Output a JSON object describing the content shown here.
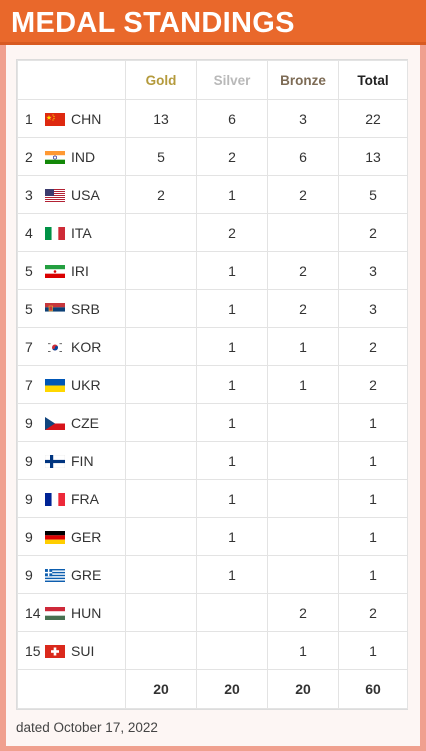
{
  "header": {
    "title": "MEDAL STANDINGS"
  },
  "columns": {
    "gold": "Gold",
    "silver": "Silver",
    "bronze": "Bronze",
    "total": "Total"
  },
  "rows": [
    {
      "rank": "1",
      "code": "CHN",
      "flag": "flag-china-icon",
      "gold": "13",
      "silver": "6",
      "bronze": "3",
      "total": "22"
    },
    {
      "rank": "2",
      "code": "IND",
      "flag": "flag-india-icon",
      "gold": "5",
      "silver": "2",
      "bronze": "6",
      "total": "13"
    },
    {
      "rank": "3",
      "code": "USA",
      "flag": "flag-usa-icon",
      "gold": "2",
      "silver": "1",
      "bronze": "2",
      "total": "5"
    },
    {
      "rank": "4",
      "code": "ITA",
      "flag": "flag-italy-icon",
      "gold": "",
      "silver": "2",
      "bronze": "",
      "total": "2"
    },
    {
      "rank": "5",
      "code": "IRI",
      "flag": "flag-iran-icon",
      "gold": "",
      "silver": "1",
      "bronze": "2",
      "total": "3"
    },
    {
      "rank": "5",
      "code": "SRB",
      "flag": "flag-serbia-icon",
      "gold": "",
      "silver": "1",
      "bronze": "2",
      "total": "3"
    },
    {
      "rank": "7",
      "code": "KOR",
      "flag": "flag-korea-icon",
      "gold": "",
      "silver": "1",
      "bronze": "1",
      "total": "2"
    },
    {
      "rank": "7",
      "code": "UKR",
      "flag": "flag-ukraine-icon",
      "gold": "",
      "silver": "1",
      "bronze": "1",
      "total": "2"
    },
    {
      "rank": "9",
      "code": "CZE",
      "flag": "flag-czechia-icon",
      "gold": "",
      "silver": "1",
      "bronze": "",
      "total": "1"
    },
    {
      "rank": "9",
      "code": "FIN",
      "flag": "flag-finland-icon",
      "gold": "",
      "silver": "1",
      "bronze": "",
      "total": "1"
    },
    {
      "rank": "9",
      "code": "FRA",
      "flag": "flag-france-icon",
      "gold": "",
      "silver": "1",
      "bronze": "",
      "total": "1"
    },
    {
      "rank": "9",
      "code": "GER",
      "flag": "flag-germany-icon",
      "gold": "",
      "silver": "1",
      "bronze": "",
      "total": "1"
    },
    {
      "rank": "9",
      "code": "GRE",
      "flag": "flag-greece-icon",
      "gold": "",
      "silver": "1",
      "bronze": "",
      "total": "1"
    },
    {
      "rank": "14",
      "code": "HUN",
      "flag": "flag-hungary-icon",
      "gold": "",
      "silver": "",
      "bronze": "2",
      "total": "2"
    },
    {
      "rank": "15",
      "code": "SUI",
      "flag": "flag-switzerland-icon",
      "gold": "",
      "silver": "",
      "bronze": "1",
      "total": "1"
    }
  ],
  "totals": {
    "gold": "20",
    "silver": "20",
    "bronze": "20",
    "total": "60"
  },
  "footer": {
    "date": "dated October 17, 2022"
  },
  "colors": {
    "header_bg": "#e9682b",
    "frame": "#f0a08f",
    "gold": "#b49a3c",
    "silver": "#b9b9b9",
    "bronze": "#7d6b55"
  }
}
